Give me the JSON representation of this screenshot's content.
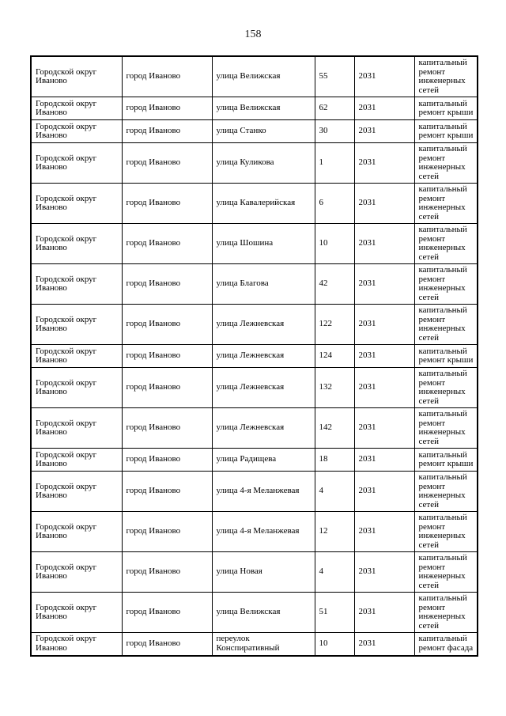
{
  "page": {
    "number": "158"
  },
  "table": {
    "rows": [
      {
        "district": "Городской округ Иваново",
        "city": "город Иваново",
        "street": "улица Велижская",
        "house": "55",
        "year": "2031",
        "work": "капитальный ремонт инженерных сетей"
      },
      {
        "district": "Городской округ Иваново",
        "city": "город Иваново",
        "street": "улица Велижская",
        "house": "62",
        "year": "2031",
        "work": "капитальный ремонт крыши"
      },
      {
        "district": "Городской округ Иваново",
        "city": "город Иваново",
        "street": "улица Станко",
        "house": "30",
        "year": "2031",
        "work": "капитальный ремонт крыши"
      },
      {
        "district": "Городской округ Иваново",
        "city": "город Иваново",
        "street": "улица Куликова",
        "house": "1",
        "year": "2031",
        "work": "капитальный ремонт инженерных сетей"
      },
      {
        "district": "Городской округ Иваново",
        "city": "город Иваново",
        "street": "улица Кавалерийская",
        "house": "6",
        "year": "2031",
        "work": "капитальный ремонт инженерных сетей"
      },
      {
        "district": "Городской округ Иваново",
        "city": "город Иваново",
        "street": "улица Шошина",
        "house": "10",
        "year": "2031",
        "work": "капитальный ремонт инженерных сетей"
      },
      {
        "district": "Городской округ Иваново",
        "city": "город Иваново",
        "street": "улица Благова",
        "house": "42",
        "year": "2031",
        "work": "капитальный ремонт инженерных сетей"
      },
      {
        "district": "Городской округ Иваново",
        "city": "город Иваново",
        "street": "улица Лежневская",
        "house": "122",
        "year": "2031",
        "work": "капитальный ремонт инженерных сетей"
      },
      {
        "district": "Городской округ Иваново",
        "city": "город Иваново",
        "street": "улица Лежневская",
        "house": "124",
        "year": "2031",
        "work": "капитальный ремонт крыши"
      },
      {
        "district": "Городской округ Иваново",
        "city": "город Иваново",
        "street": "улица Лежневская",
        "house": "132",
        "year": "2031",
        "work": "капитальный ремонт инженерных сетей"
      },
      {
        "district": "Городской округ Иваново",
        "city": "город Иваново",
        "street": "улица Лежневская",
        "house": "142",
        "year": "2031",
        "work": "капитальный ремонт инженерных сетей"
      },
      {
        "district": "Городской округ Иваново",
        "city": "город Иваново",
        "street": "улица Радищева",
        "house": "18",
        "year": "2031",
        "work": "капитальный ремонт крыши"
      },
      {
        "district": "Городской округ Иваново",
        "city": "город Иваново",
        "street": "улица 4-я Меланжевая",
        "house": "4",
        "year": "2031",
        "work": "капитальный ремонт инженерных сетей"
      },
      {
        "district": "Городской округ Иваново",
        "city": "город Иваново",
        "street": "улица 4-я Меланжевая",
        "house": "12",
        "year": "2031",
        "work": "капитальный ремонт инженерных сетей"
      },
      {
        "district": "Городской округ Иваново",
        "city": "город Иваново",
        "street": "улица Новая",
        "house": "4",
        "year": "2031",
        "work": "капитальный ремонт инженерных сетей"
      },
      {
        "district": "Городской округ Иваново",
        "city": "город Иваново",
        "street": "улица Велижская",
        "house": "51",
        "year": "2031",
        "work": "капитальный ремонт инженерных сетей"
      },
      {
        "district": "Городской округ Иваново",
        "city": "город Иваново",
        "street": "переулок Конспиративный",
        "house": "10",
        "year": "2031",
        "work": "капитальный ремонт фасада"
      }
    ]
  }
}
